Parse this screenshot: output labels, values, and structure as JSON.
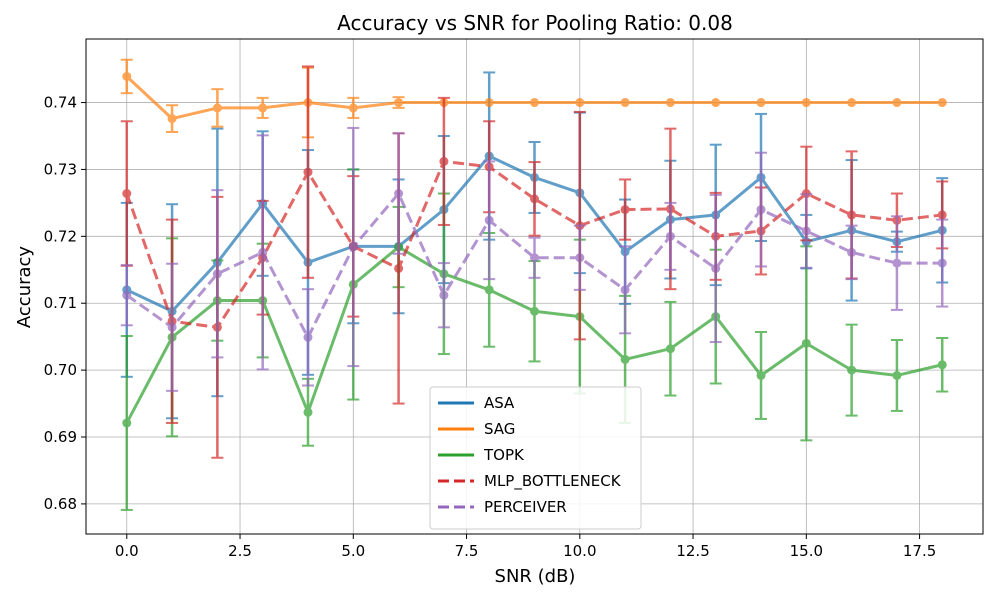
{
  "chart_data": {
    "type": "line",
    "title": "Accuracy vs SNR for Pooling Ratio: 0.08",
    "xlabel": "SNR (dB)",
    "ylabel": "Accuracy",
    "xlim": [
      -0.9,
      18.9
    ],
    "ylim": [
      0.6755,
      0.7495
    ],
    "xticks": [
      0.0,
      2.5,
      5.0,
      7.5,
      10.0,
      12.5,
      15.0,
      17.5
    ],
    "xtick_labels": [
      "0.0",
      "2.5",
      "5.0",
      "7.5",
      "10.0",
      "12.5",
      "15.0",
      "17.5"
    ],
    "yticks": [
      0.68,
      0.69,
      0.7,
      0.71,
      0.72,
      0.73,
      0.74
    ],
    "ytick_labels": [
      "0.68",
      "0.69",
      "0.70",
      "0.71",
      "0.72",
      "0.73",
      "0.74"
    ],
    "grid": true,
    "legend_position": "lower-center",
    "x": [
      0,
      1,
      2,
      3,
      4,
      5,
      6,
      7,
      8,
      9,
      10,
      11,
      12,
      13,
      14,
      15,
      16,
      17,
      18
    ],
    "series": [
      {
        "name": "ASA",
        "color": "#1f77b4",
        "dash": "solid",
        "values": [
          0.712,
          0.7088,
          0.7161,
          0.7249,
          0.7161,
          0.7185,
          0.7185,
          0.724,
          0.732,
          0.7288,
          0.7265,
          0.7177,
          0.7225,
          0.7232,
          0.7288,
          0.7192,
          0.7209,
          0.7192,
          0.7209
        ],
        "errors": [
          0.013,
          0.016,
          0.02,
          0.0108,
          0.0168,
          0.0115,
          0.01,
          0.011,
          0.0125,
          0.0053,
          0.012,
          0.0078,
          0.0088,
          0.0105,
          0.0095,
          0.004,
          0.0105,
          0.0015,
          0.0078
        ]
      },
      {
        "name": "SAG",
        "color": "#ff7f0e",
        "dash": "solid",
        "values": [
          0.7439,
          0.7376,
          0.7392,
          0.7392,
          0.74,
          0.7392,
          0.74,
          0.74,
          0.74,
          0.74,
          0.74,
          0.74,
          0.74,
          0.74,
          0.74,
          0.74,
          0.74,
          0.74,
          0.74
        ],
        "errors": [
          0.0025,
          0.002,
          0.0028,
          0.0015,
          0.0052,
          0.0015,
          0.0008,
          0,
          0,
          0,
          0,
          0,
          0,
          0,
          0,
          0,
          0,
          0,
          0
        ]
      },
      {
        "name": "TOPK",
        "color": "#2ca02c",
        "dash": "solid",
        "values": [
          0.6921,
          0.7049,
          0.7104,
          0.7104,
          0.6937,
          0.7128,
          0.7184,
          0.7144,
          0.712,
          0.7088,
          0.708,
          0.7016,
          0.7032,
          0.708,
          0.6992,
          0.704,
          0.7,
          0.6992,
          0.7008
        ],
        "errors": [
          0.013,
          0.0148,
          0.006,
          0.0085,
          0.005,
          0.0172,
          0.006,
          0.012,
          0.0085,
          0.0075,
          0.0115,
          0.0095,
          0.007,
          0.01,
          0.0065,
          0.0145,
          0.0068,
          0.0053,
          0.004
        ]
      },
      {
        "name": "MLP_BOTTLENECK",
        "color": "#d62728",
        "dash": "dashed",
        "values": [
          0.7264,
          0.7073,
          0.7064,
          0.7168,
          0.7296,
          0.7185,
          0.7152,
          0.7312,
          0.7304,
          0.7256,
          0.7216,
          0.724,
          0.7241,
          0.72,
          0.7208,
          0.7264,
          0.7232,
          0.7224,
          0.7232
        ],
        "errors": [
          0.0108,
          0.0152,
          0.0195,
          0.0085,
          0.0158,
          0.0105,
          0.0202,
          0.0095,
          0.0068,
          0.0055,
          0.017,
          0.0045,
          0.012,
          0.0065,
          0.0065,
          0.007,
          0.0095,
          0.004,
          0.005
        ]
      },
      {
        "name": "PERCEIVER",
        "color": "#9467bd",
        "dash": "dashed",
        "values": [
          0.7112,
          0.7064,
          0.7144,
          0.7176,
          0.7049,
          0.7184,
          0.7264,
          0.7112,
          0.7224,
          0.7168,
          0.7168,
          0.712,
          0.72,
          0.7152,
          0.724,
          0.7208,
          0.7176,
          0.716,
          0.716
        ],
        "errors": [
          0.0045,
          0.0095,
          0.0125,
          0.0175,
          0.0072,
          0.0178,
          0.009,
          0.0048,
          0.0088,
          0.003,
          0.0048,
          0.0065,
          0.005,
          0.011,
          0.0085,
          0.0055,
          0.004,
          0.007,
          0.0065
        ]
      }
    ]
  }
}
